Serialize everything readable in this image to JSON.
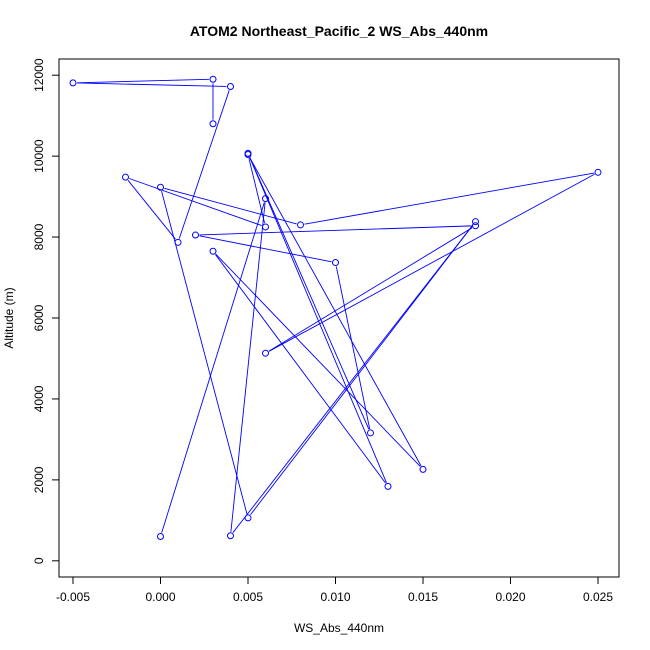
{
  "chart_data": {
    "type": "line",
    "title": "ATOM2 Northeast_Pacific_2 WS_Abs_440nm",
    "xlabel": "WS_Abs_440nm",
    "ylabel": "Altitude (m)",
    "xlim": [
      -0.0058,
      0.0262
    ],
    "ylim": [
      -400,
      12400
    ],
    "xticks": [
      -0.005,
      0.0,
      0.005,
      0.01,
      0.015,
      0.02,
      0.025
    ],
    "xtick_labels": [
      "-0.005",
      "0.000",
      "0.005",
      "0.010",
      "0.015",
      "0.020",
      "0.025"
    ],
    "yticks": [
      0,
      2000,
      4000,
      6000,
      8000,
      10000,
      12000
    ],
    "ytick_labels": [
      "0",
      "2000",
      "4000",
      "6000",
      "8000",
      "10000",
      "12000"
    ],
    "line_color": "#0000ff",
    "marker": "open-circle",
    "points": [
      {
        "x": 0.0,
        "y": 600
      },
      {
        "x": 0.006,
        "y": 8950
      },
      {
        "x": 0.004,
        "y": 620
      },
      {
        "x": 0.018,
        "y": 8380
      },
      {
        "x": 0.005,
        "y": 1060
      },
      {
        "x": 0.0,
        "y": 9230
      },
      {
        "x": 0.008,
        "y": 8300
      },
      {
        "x": 0.025,
        "y": 9600
      },
      {
        "x": 0.006,
        "y": 5130
      },
      {
        "x": 0.018,
        "y": 8280
      },
      {
        "x": 0.002,
        "y": 8050
      },
      {
        "x": 0.01,
        "y": 7370
      },
      {
        "x": 0.012,
        "y": 3160
      },
      {
        "x": 0.005,
        "y": 10070
      },
      {
        "x": 0.013,
        "y": 1840
      },
      {
        "x": 0.003,
        "y": 7650
      },
      {
        "x": 0.015,
        "y": 2260
      },
      {
        "x": 0.005,
        "y": 10040
      },
      {
        "x": 0.006,
        "y": 8250
      },
      {
        "x": -0.002,
        "y": 9480
      },
      {
        "x": 0.001,
        "y": 7870
      },
      {
        "x": 0.004,
        "y": 11720
      },
      {
        "x": -0.005,
        "y": 11810
      },
      {
        "x": 0.003,
        "y": 11900
      },
      {
        "x": 0.003,
        "y": 10800
      }
    ]
  }
}
